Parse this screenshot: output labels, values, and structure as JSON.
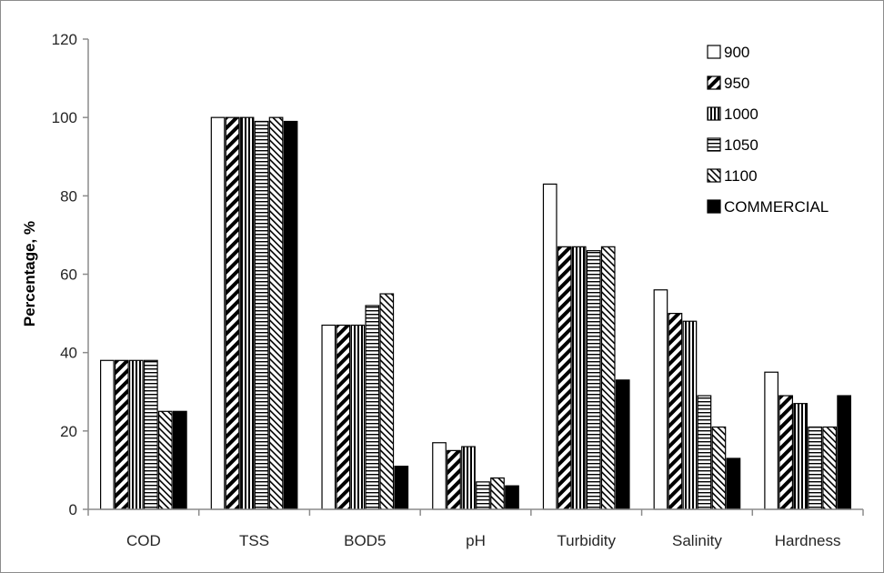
{
  "chart_data": {
    "type": "bar",
    "title": "",
    "xlabel": "",
    "ylabel": "Percentage, %",
    "ylim": [
      0,
      120
    ],
    "yticks": [
      0,
      20,
      40,
      60,
      80,
      100,
      120
    ],
    "grid": false,
    "legend_position": "top-right",
    "categories": [
      "COD",
      "TSS",
      "BOD5",
      "pH",
      "Turbidity",
      "Salinity",
      "Hardness"
    ],
    "series": [
      {
        "name": "900",
        "pattern": "open",
        "values": [
          38,
          100,
          47,
          17,
          83,
          56,
          35
        ]
      },
      {
        "name": "950",
        "pattern": "diagonal",
        "values": [
          38,
          100,
          47,
          15,
          67,
          50,
          29
        ]
      },
      {
        "name": "1000",
        "pattern": "vertical",
        "values": [
          38,
          100,
          47,
          16,
          67,
          48,
          27
        ]
      },
      {
        "name": "1050",
        "pattern": "horizontal",
        "values": [
          38,
          99,
          52,
          7,
          66,
          29,
          21
        ]
      },
      {
        "name": "1100",
        "pattern": "crosshatch",
        "values": [
          25,
          100,
          55,
          8,
          67,
          21,
          21
        ]
      },
      {
        "name": "COMMERCIAL",
        "pattern": "solid",
        "values": [
          25,
          99,
          11,
          6,
          33,
          13,
          29
        ]
      }
    ],
    "colors": {
      "fill_solid": "#000000",
      "stroke": "#000000",
      "background": "#ffffff"
    }
  }
}
